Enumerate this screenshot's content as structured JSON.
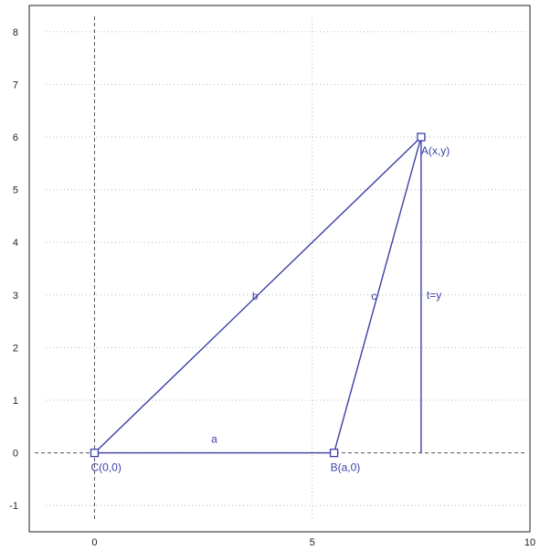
{
  "colors": {
    "shape": "#3b3fa8",
    "frame": "#222222",
    "grid": "#b8b8b8",
    "axis": "#555555"
  },
  "chart_data": {
    "type": "scatter",
    "xlim": [
      -1.5,
      10
    ],
    "ylim": [
      -1.5,
      8.5
    ],
    "x_ticks": [
      0,
      5,
      10
    ],
    "y_ticks": [
      -1,
      0,
      1,
      2,
      3,
      4,
      5,
      6,
      7,
      8
    ],
    "grid": true,
    "points": [
      {
        "id": "C",
        "label": "C(0,0)",
        "x": 0,
        "y": 0
      },
      {
        "id": "B",
        "label": "B(a,0)",
        "x": 5.5,
        "y": 0
      },
      {
        "id": "A",
        "label": "A(x,y)",
        "x": 7.5,
        "y": 6
      }
    ],
    "segments": [
      {
        "id": "a",
        "label": "a",
        "from": "C",
        "to": "B"
      },
      {
        "id": "b",
        "label": "b",
        "from": "C",
        "to": "A"
      },
      {
        "id": "c",
        "label": "c",
        "from": "B",
        "to": "A"
      },
      {
        "id": "t",
        "label": "t=y",
        "from": [
          7.5,
          6
        ],
        "to": [
          7.5,
          0
        ]
      }
    ]
  }
}
